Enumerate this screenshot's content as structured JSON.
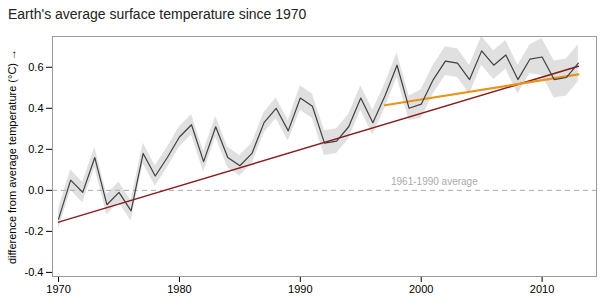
{
  "chart_data": {
    "type": "line",
    "title": "Earth's average surface temperature since 1970",
    "ylabel": "difference from average temperature (°C)",
    "x": [
      1970,
      1971,
      1972,
      1973,
      1974,
      1975,
      1976,
      1977,
      1978,
      1979,
      1980,
      1981,
      1982,
      1983,
      1984,
      1985,
      1986,
      1987,
      1988,
      1989,
      1990,
      1991,
      1992,
      1993,
      1994,
      1995,
      1996,
      1997,
      1998,
      1999,
      2000,
      2001,
      2002,
      2003,
      2004,
      2005,
      2006,
      2007,
      2008,
      2009,
      2010,
      2011,
      2012,
      2013
    ],
    "xlim": [
      1969.5,
      2014.5
    ],
    "xticks": [
      1970,
      1980,
      1990,
      2000,
      2010
    ],
    "ylim": [
      -0.42,
      0.75
    ],
    "yticks": [
      -0.4,
      -0.2,
      {
        "value": 0.0,
        "label": "0.0"
      },
      0.2,
      0.4,
      0.6
    ],
    "grid": false,
    "series": [
      {
        "type": "band",
        "color": "#cccccc",
        "lower": [
          -0.19,
          -0.0,
          -0.06,
          0.11,
          -0.12,
          -0.06,
          -0.15,
          0.13,
          0.02,
          0.11,
          0.21,
          0.27,
          0.09,
          0.26,
          0.11,
          0.07,
          0.13,
          0.28,
          0.35,
          0.24,
          0.39,
          0.35,
          0.17,
          0.18,
          0.25,
          0.39,
          0.27,
          0.4,
          0.55,
          0.34,
          0.35,
          0.47,
          0.56,
          0.55,
          0.47,
          0.61,
          0.54,
          0.59,
          0.47,
          0.57,
          0.56,
          0.45,
          0.46,
          0.53
        ],
        "upper": [
          -0.09,
          0.1,
          0.04,
          0.21,
          -0.02,
          0.04,
          -0.05,
          0.23,
          0.12,
          0.21,
          0.31,
          0.37,
          0.19,
          0.36,
          0.21,
          0.17,
          0.23,
          0.38,
          0.45,
          0.34,
          0.51,
          0.47,
          0.29,
          0.3,
          0.37,
          0.51,
          0.39,
          0.52,
          0.67,
          0.46,
          0.49,
          0.61,
          0.7,
          0.69,
          0.61,
          0.75,
          0.68,
          0.73,
          0.61,
          0.71,
          0.74,
          0.63,
          0.64,
          0.71
        ]
      },
      {
        "type": "hline",
        "y": 0,
        "color": "#aaaaaa",
        "line_style": "dashed"
      },
      {
        "type": "line",
        "color": "#8b1a1a",
        "x": [
          1970,
          2013
        ],
        "values": [
          -0.155,
          0.605
        ]
      },
      {
        "type": "line",
        "color": "#e8941a",
        "x": [
          1997,
          2013
        ],
        "values": [
          0.415,
          0.565
        ]
      },
      {
        "type": "line",
        "color": "#404040",
        "values": [
          -0.14,
          0.05,
          -0.01,
          0.16,
          -0.07,
          -0.01,
          -0.1,
          0.18,
          0.07,
          0.16,
          0.26,
          0.32,
          0.14,
          0.31,
          0.16,
          0.12,
          0.18,
          0.33,
          0.4,
          0.29,
          0.45,
          0.41,
          0.23,
          0.24,
          0.31,
          0.45,
          0.33,
          0.46,
          0.61,
          0.4,
          0.42,
          0.54,
          0.63,
          0.62,
          0.54,
          0.68,
          0.61,
          0.66,
          0.54,
          0.64,
          0.65,
          0.54,
          0.55,
          0.62
        ]
      }
    ],
    "annotations": [
      {
        "text": "1961-1990 average",
        "x": 1997.5,
        "y": 0.025,
        "color": "#aaaaaa"
      }
    ]
  }
}
